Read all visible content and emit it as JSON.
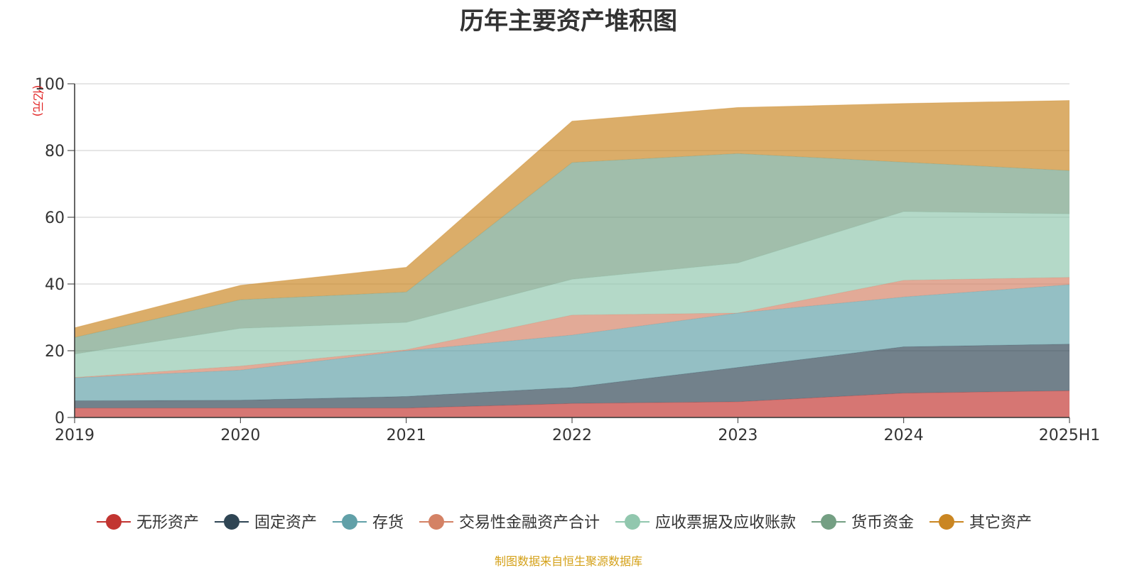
{
  "title": "历年主要资产堆积图",
  "source": "制图数据来自恒生聚源数据库",
  "chart_data": {
    "type": "area",
    "stacked": true,
    "title": "历年主要资产堆积图",
    "ylabel": "(亿元)",
    "ylim": [
      0,
      100
    ],
    "yticks": [
      "0",
      "20",
      "40",
      "60",
      "80",
      "100"
    ],
    "x": [
      "2019",
      "2020",
      "2021",
      "2022",
      "2023",
      "2024",
      "2025H1"
    ],
    "grid": true,
    "legend": "bottom",
    "series": [
      {
        "name": "无形资产",
        "color": "#c23531",
        "values": [
          2.8,
          2.8,
          2.8,
          4.2,
          4.7,
          7.3,
          8.0
        ]
      },
      {
        "name": "固定资产",
        "color": "#2f4554",
        "values": [
          2.2,
          2.4,
          3.5,
          4.8,
          10.3,
          13.9,
          14.0
        ]
      },
      {
        "name": "存货",
        "color": "#61a0a8",
        "values": [
          6.9,
          9.0,
          13.7,
          15.7,
          16.3,
          14.9,
          17.8
        ]
      },
      {
        "name": "交易性金融资产合计",
        "color": "#d48265",
        "values": [
          0.1,
          1.2,
          0.3,
          6.0,
          0.0,
          5.0,
          2.2
        ]
      },
      {
        "name": "应收票据及应收账款",
        "color": "#91c7ae",
        "values": [
          7.0,
          11.3,
          8.2,
          10.7,
          15.0,
          20.6,
          19.0
        ]
      },
      {
        "name": "货币资金",
        "color": "#749f83",
        "values": [
          5.0,
          8.6,
          9.1,
          35.0,
          32.8,
          14.8,
          13.0
        ]
      },
      {
        "name": "其它资产",
        "color": "#ca8622",
        "values": [
          2.9,
          4.3,
          7.4,
          12.4,
          13.8,
          17.6,
          21.0
        ]
      }
    ]
  }
}
